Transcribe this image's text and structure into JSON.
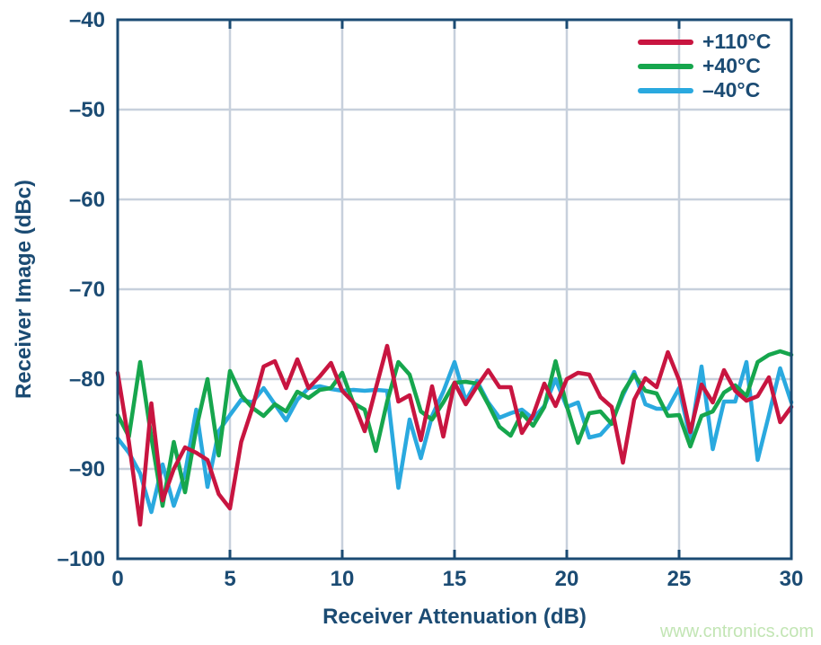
{
  "colors": {
    "background": "#FFFFFF",
    "navy_text_and_frame": "#1B4B73",
    "gridline": "#C7D0DC",
    "watermark_green": "#C2E5B4",
    "series_red": "#C81540",
    "series_green": "#16A64D",
    "series_cyan": "#2AA9DF"
  },
  "watermark": {
    "text": "www.cntronics.com"
  },
  "chart_data": {
    "type": "line",
    "title": "",
    "xlabel": "Receiver Attenuation (dB)",
    "ylabel": "Receiver Image (dBc)",
    "xlim": [
      0,
      30
    ],
    "ylim": [
      -100,
      -40
    ],
    "grid": true,
    "legend_position": "top-right-inside",
    "x_ticks": [
      0,
      5,
      10,
      15,
      20,
      25,
      30
    ],
    "x_tick_labels": [
      "0",
      "5",
      "10",
      "15",
      "20",
      "25",
      "30"
    ],
    "y_ticks": [
      -40,
      -50,
      -60,
      -70,
      -80,
      -90,
      -100
    ],
    "y_tick_labels": [
      "–40",
      "–50",
      "–60",
      "–70",
      "–80",
      "–90",
      "–100"
    ],
    "x_start": 0,
    "x_step": 0.5,
    "series": [
      {
        "name": "+110°C",
        "color": "#C81540",
        "values": [
          -79.3,
          -87,
          -96.2,
          -82.7,
          -93.5,
          -90,
          -87.6,
          -88.2,
          -89,
          -92.8,
          -94.4,
          -87,
          -83.2,
          -78.6,
          -78,
          -81,
          -77.8,
          -81,
          -79.7,
          -78.2,
          -81.3,
          -82.6,
          -85.8,
          -81,
          -76.3,
          -82.5,
          -81.8,
          -86.8,
          -80.8,
          -86.4,
          -80.4,
          -82.8,
          -80.8,
          -79,
          -80.9,
          -80.9,
          -86,
          -84,
          -80.5,
          -83,
          -80,
          -79.3,
          -79.5,
          -82,
          -83.1,
          -89.3,
          -82.3,
          -79.9,
          -80.9,
          -77,
          -80.1,
          -85.9,
          -80.6,
          -82.6,
          -79,
          -81.3,
          -82.4,
          -81.9,
          -79.8,
          -84.8,
          -83.1
        ]
      },
      {
        "name": "+40°C",
        "color": "#16A64D",
        "values": [
          -84,
          -86.4,
          -78.1,
          -86.5,
          -94.1,
          -87,
          -92.6,
          -85.5,
          -80,
          -88.5,
          -79.1,
          -81.8,
          -83.2,
          -84.1,
          -82.8,
          -83.6,
          -81.4,
          -82.1,
          -81.2,
          -81,
          -79.3,
          -82.7,
          -83.4,
          -88,
          -82.5,
          -78.1,
          -79.5,
          -83.6,
          -84.5,
          -82.6,
          -80.4,
          -80.3,
          -80.5,
          -82.8,
          -85.3,
          -86.3,
          -83.8,
          -85.2,
          -83.1,
          -78,
          -83,
          -87.1,
          -83.8,
          -83.6,
          -85,
          -81.5,
          -79.5,
          -81.3,
          -81.6,
          -84.1,
          -84,
          -87.5,
          -84.1,
          -83.6,
          -81.5,
          -80.7,
          -81.9,
          -78.1,
          -77.3,
          -76.9,
          -77.3
        ]
      },
      {
        "name": "–40°C",
        "color": "#2AA9DF",
        "values": [
          -86.6,
          -88.2,
          -90.5,
          -94.8,
          -89.5,
          -94.1,
          -90.5,
          -83.4,
          -92,
          -85.8,
          -84,
          -82.3,
          -82.6,
          -81,
          -82.8,
          -84.6,
          -82.3,
          -81,
          -80.8,
          -81.1,
          -81.3,
          -81.2,
          -81.3,
          -81.2,
          -81.3,
          -92.1,
          -84.5,
          -88.8,
          -84.1,
          -81.4,
          -78.1,
          -82.4,
          -80.2,
          -82.6,
          -84.3,
          -83.8,
          -83.4,
          -84.4,
          -83,
          -80,
          -83.1,
          -82.6,
          -86.5,
          -86.2,
          -84.8,
          -81.8,
          -79.2,
          -82.8,
          -83.3,
          -83.3,
          -81,
          -86.6,
          -78.6,
          -87.8,
          -82.5,
          -82.5,
          -78.1,
          -89,
          -84,
          -78.8,
          -82.6
        ]
      }
    ]
  }
}
